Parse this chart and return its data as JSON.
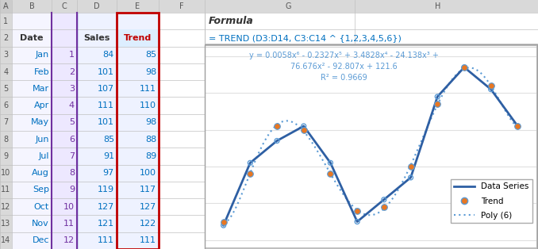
{
  "months": [
    "Jan",
    "Feb",
    "Mar",
    "Apr",
    "May",
    "Jun",
    "Jul",
    "Aug",
    "Sep",
    "Oct",
    "Nov",
    "Dec"
  ],
  "x": [
    1,
    2,
    3,
    4,
    5,
    6,
    7,
    8,
    9,
    10,
    11,
    12
  ],
  "sales": [
    84,
    101,
    107,
    111,
    101,
    85,
    91,
    97,
    119,
    127,
    121,
    111
  ],
  "trend": [
    85,
    98,
    111,
    110,
    98,
    88,
    89,
    100,
    117,
    127,
    122,
    111
  ],
  "ylim": [
    78,
    133
  ],
  "yticks": [
    80,
    90,
    100,
    110,
    120,
    130
  ],
  "line_color": "#2E5FA3",
  "trend_color": "#E87722",
  "poly_color": "#5B9BD5",
  "formula_text_line1": "y = 0.0058x⁶ - 0.2327x⁵ + 3.4828x⁴ - 24.138x³ +",
  "formula_text_line2": "76.676x² - 92.807x + 121.6",
  "formula_text_line3": "R² = 0.9669",
  "spreadsheet_title": "Formula",
  "formula_cell": "= TREND (D3:D14, C3:C14 ^ {1,2,3,4,5,6})",
  "grid_color": "#D9D9D9",
  "ss_bg": "#C8C8C8",
  "col_hdr_bg": "#D9D9D9",
  "row_hdr_bg": "#D9D9D9",
  "cell_bg": "#FFFFFF",
  "col_B_selected_bg": "#E8E8F8",
  "col_C_selected_bg": "#F0EAFF",
  "col_D_selected_bg": "#EEF2FF",
  "col_E_selected_bg": "#E8F0FF",
  "date_color": "#0070C0",
  "num_color": "#7030A0",
  "sales_color": "#0070C0",
  "trend_color_text": "#0070C0",
  "header_text_color": "#333333",
  "trend_header_text": "#C00000",
  "formula_title_color": "#333333",
  "formula_text_color": "#0070C0"
}
